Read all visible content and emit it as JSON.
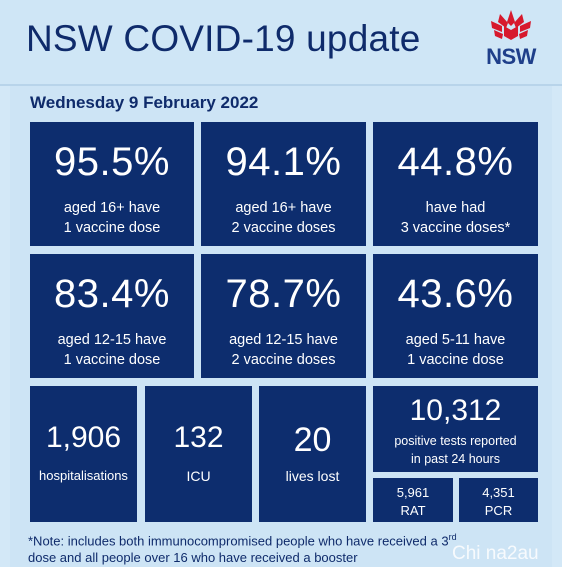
{
  "header": {
    "title": "NSW COVID-19 update",
    "logo_text": "NSW"
  },
  "date": "Wednesday 9 February 2022",
  "tiles": [
    {
      "value": "95.5%",
      "line1": "aged 16+ have",
      "line2": "1 vaccine dose"
    },
    {
      "value": "94.1%",
      "line1": "aged 16+ have",
      "line2": "2 vaccine doses"
    },
    {
      "value": "44.8%",
      "line1": "have had",
      "line2": "3 vaccine doses*"
    },
    {
      "value": "83.4%",
      "line1": "aged 12-15 have",
      "line2": "1 vaccine dose"
    },
    {
      "value": "78.7%",
      "line1": "aged 12-15 have",
      "line2": "2 vaccine doses"
    },
    {
      "value": "43.6%",
      "line1": "aged 5-11 have",
      "line2": "1 vaccine dose"
    }
  ],
  "stats": {
    "hospitalisations": {
      "value": "1,906",
      "label": "hospitalisations"
    },
    "icu": {
      "value": "132",
      "label": "ICU"
    },
    "deaths": {
      "value": "20",
      "label": "lives lost"
    },
    "positive": {
      "value": "10,312",
      "line1": "positive tests reported",
      "line2": "in past 24 hours"
    },
    "rat": {
      "value": "5,961",
      "label": "RAT"
    },
    "pcr": {
      "value": "4,351",
      "label": "PCR"
    }
  },
  "note": {
    "part1": "*Note: includes both immunocompromised  people who have received a 3",
    "sup": "rd",
    "part2": "dose and all people over 16 who have received a booster"
  },
  "watermark": "Chi na2au",
  "colors": {
    "tile_bg": "#0d2d6e",
    "page_bg": "#d3e8f7",
    "title_text": "#0f2b6b",
    "waratah_red": "#d7192d"
  }
}
